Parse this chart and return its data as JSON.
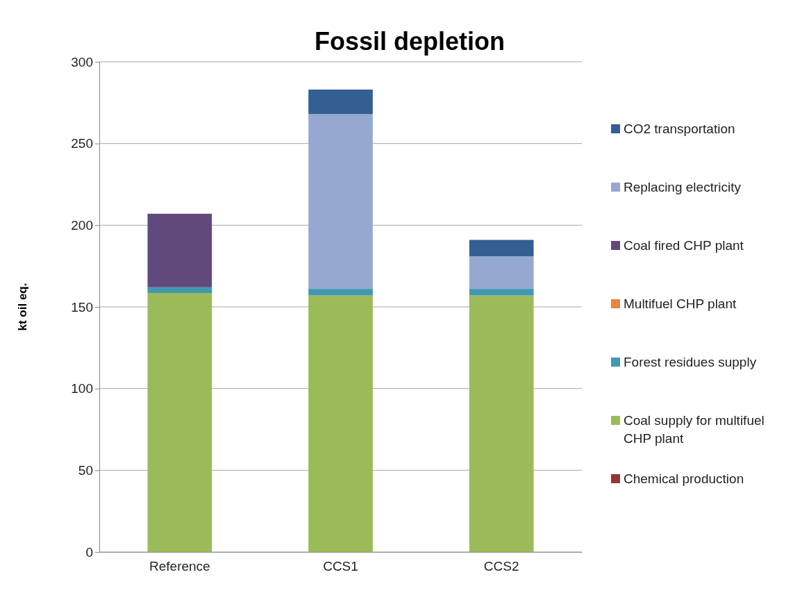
{
  "chart_data": {
    "type": "bar",
    "title": "Fossil depletion",
    "ylabel": "kt oil eq.",
    "categories": [
      "Reference",
      "CCS1",
      "CCS2"
    ],
    "stacked": true,
    "ylim": [
      0,
      300
    ],
    "yticks": [
      0,
      50,
      100,
      150,
      200,
      250,
      300
    ],
    "grid": "y",
    "legend": "right",
    "series": [
      {
        "name": "Chemical production",
        "color": "#953735",
        "values": [
          0,
          0,
          0
        ]
      },
      {
        "name": "Coal supply for multifuel CHP plant",
        "color": "#9bbb59",
        "values": [
          158.5,
          157,
          157
        ]
      },
      {
        "name": "Forest residues supply",
        "color": "#4198af",
        "values": [
          3.5,
          4,
          4
        ]
      },
      {
        "name": "Multifuel CHP plant",
        "color": "#e6843f",
        "values": [
          0,
          0,
          0
        ]
      },
      {
        "name": "Coal fired CHP plant",
        "color": "#604a7b",
        "values": [
          45,
          0,
          0
        ]
      },
      {
        "name": "Replacing electricity",
        "color": "#95a9d0",
        "values": [
          0,
          107,
          20
        ]
      },
      {
        "name": "CO2 transportation",
        "color": "#335f92",
        "values": [
          0,
          15,
          10
        ]
      }
    ]
  }
}
